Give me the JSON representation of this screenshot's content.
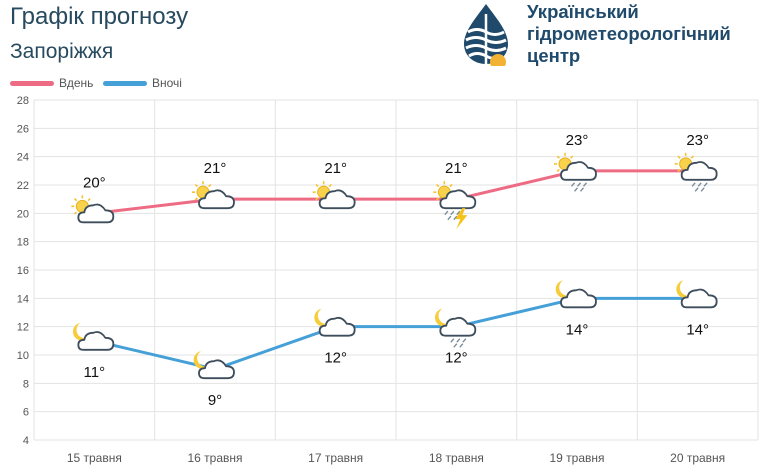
{
  "header": {
    "title": "Графік прогнозу",
    "city": "Запоріжжя",
    "org_lines": [
      "Український",
      "гідрометеорологічний",
      "центр"
    ]
  },
  "colors": {
    "day": "#ee6b84",
    "night": "#45a0d8",
    "text_dark": "#274a5e",
    "org": "#1f4a6b",
    "grid": "#e3e3e3",
    "axis_text": "#555555"
  },
  "legend": {
    "day": "Вдень",
    "night": "Вночі"
  },
  "chart_data": {
    "type": "line",
    "categories": [
      "15 травня",
      "16 травня",
      "17 травня",
      "18 травня",
      "19 травня",
      "20 травня"
    ],
    "ylim": [
      4,
      28
    ],
    "yticks": [
      4,
      6,
      8,
      10,
      12,
      14,
      16,
      18,
      20,
      22,
      24,
      26,
      28
    ],
    "grid": true,
    "legend_position": "top-left",
    "series": [
      {
        "name": "Вдень",
        "values": [
          20,
          21,
          21,
          21,
          23,
          23
        ],
        "labels": [
          "20°",
          "21°",
          "21°",
          "21°",
          "23°",
          "23°"
        ],
        "icons": [
          "sun-cloud-icon",
          "sun-cloud-icon",
          "sun-cloud-icon",
          "sun-thunderstorm-icon",
          "sun-cloud-rain-icon",
          "sun-cloud-rain-icon"
        ]
      },
      {
        "name": "Вночі",
        "values": [
          11,
          9,
          12,
          12,
          14,
          14
        ],
        "labels": [
          "11°",
          "9°",
          "12°",
          "12°",
          "14°",
          "14°"
        ],
        "icons": [
          "moon-cloud-icon",
          "moon-cloud-icon",
          "moon-cloud-icon",
          "moon-cloud-rain-icon",
          "moon-cloud-icon",
          "moon-cloud-icon"
        ]
      }
    ]
  }
}
